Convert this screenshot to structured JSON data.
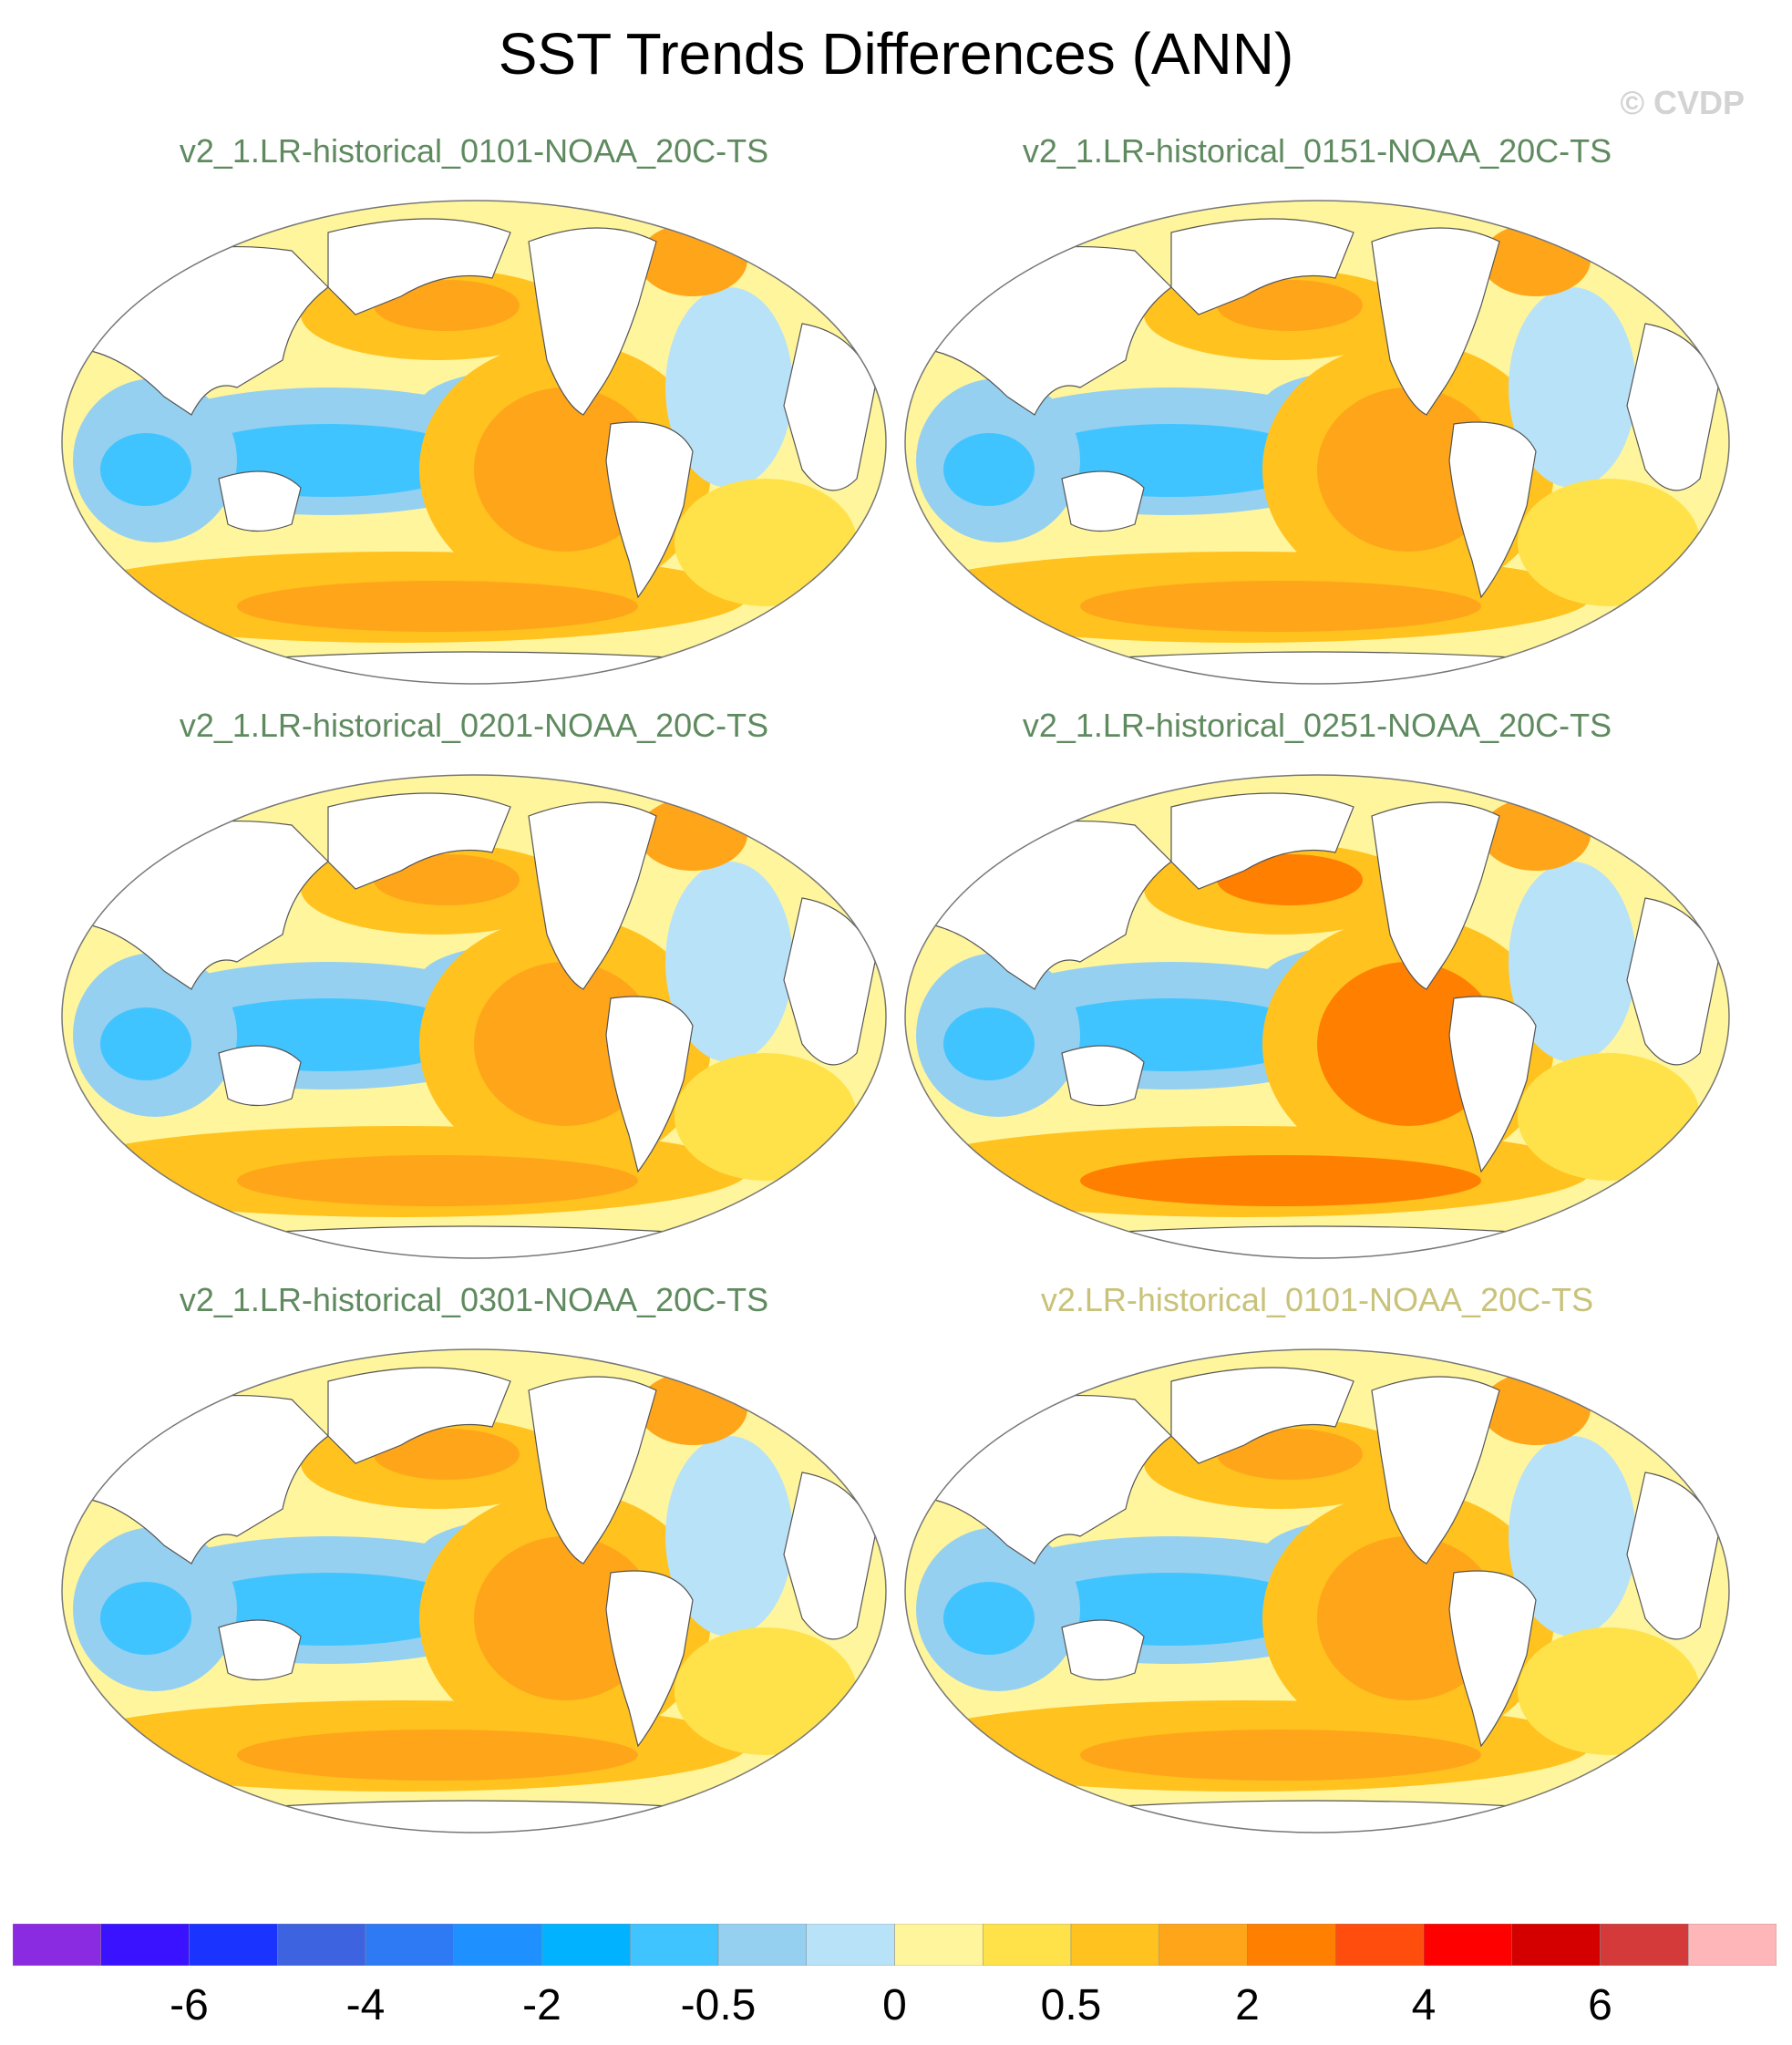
{
  "title": "SST Trends Differences (ANN)",
  "copyright": "© CVDP",
  "panels": [
    {
      "label": "v2_1.LR-historical_0101-NOAA_20C-TS",
      "color": "#5f8a5f"
    },
    {
      "label": "v2_1.LR-historical_0151-NOAA_20C-TS",
      "color": "#5f8a5f"
    },
    {
      "label": "v2_1.LR-historical_0201-NOAA_20C-TS",
      "color": "#5f8a5f"
    },
    {
      "label": "v2_1.LR-historical_0251-NOAA_20C-TS",
      "color": "#5f8a5f"
    },
    {
      "label": "v2_1.LR-historical_0301-NOAA_20C-TS",
      "color": "#5f8a5f"
    },
    {
      "label": "v2.LR-historical_0101-NOAA_20C-TS",
      "color": "#c8c27a"
    }
  ],
  "colorbar": {
    "colors": [
      "#8a2be2",
      "#3a12ff",
      "#1a33ff",
      "#3d63e0",
      "#2e7af5",
      "#1e90ff",
      "#00b2ff",
      "#40c4ff",
      "#96d0f0",
      "#b8e2f8",
      "#fff59d",
      "#ffe24a",
      "#ffc21e",
      "#ffa519",
      "#ff7f00",
      "#ff4d0d",
      "#ff0000",
      "#d40000",
      "#d43a3a",
      "#ffb6b9"
    ],
    "labels": [
      "-6",
      "-4",
      "-2",
      "-0.5",
      "0",
      "0.5",
      "2",
      "4",
      "6"
    ]
  }
}
